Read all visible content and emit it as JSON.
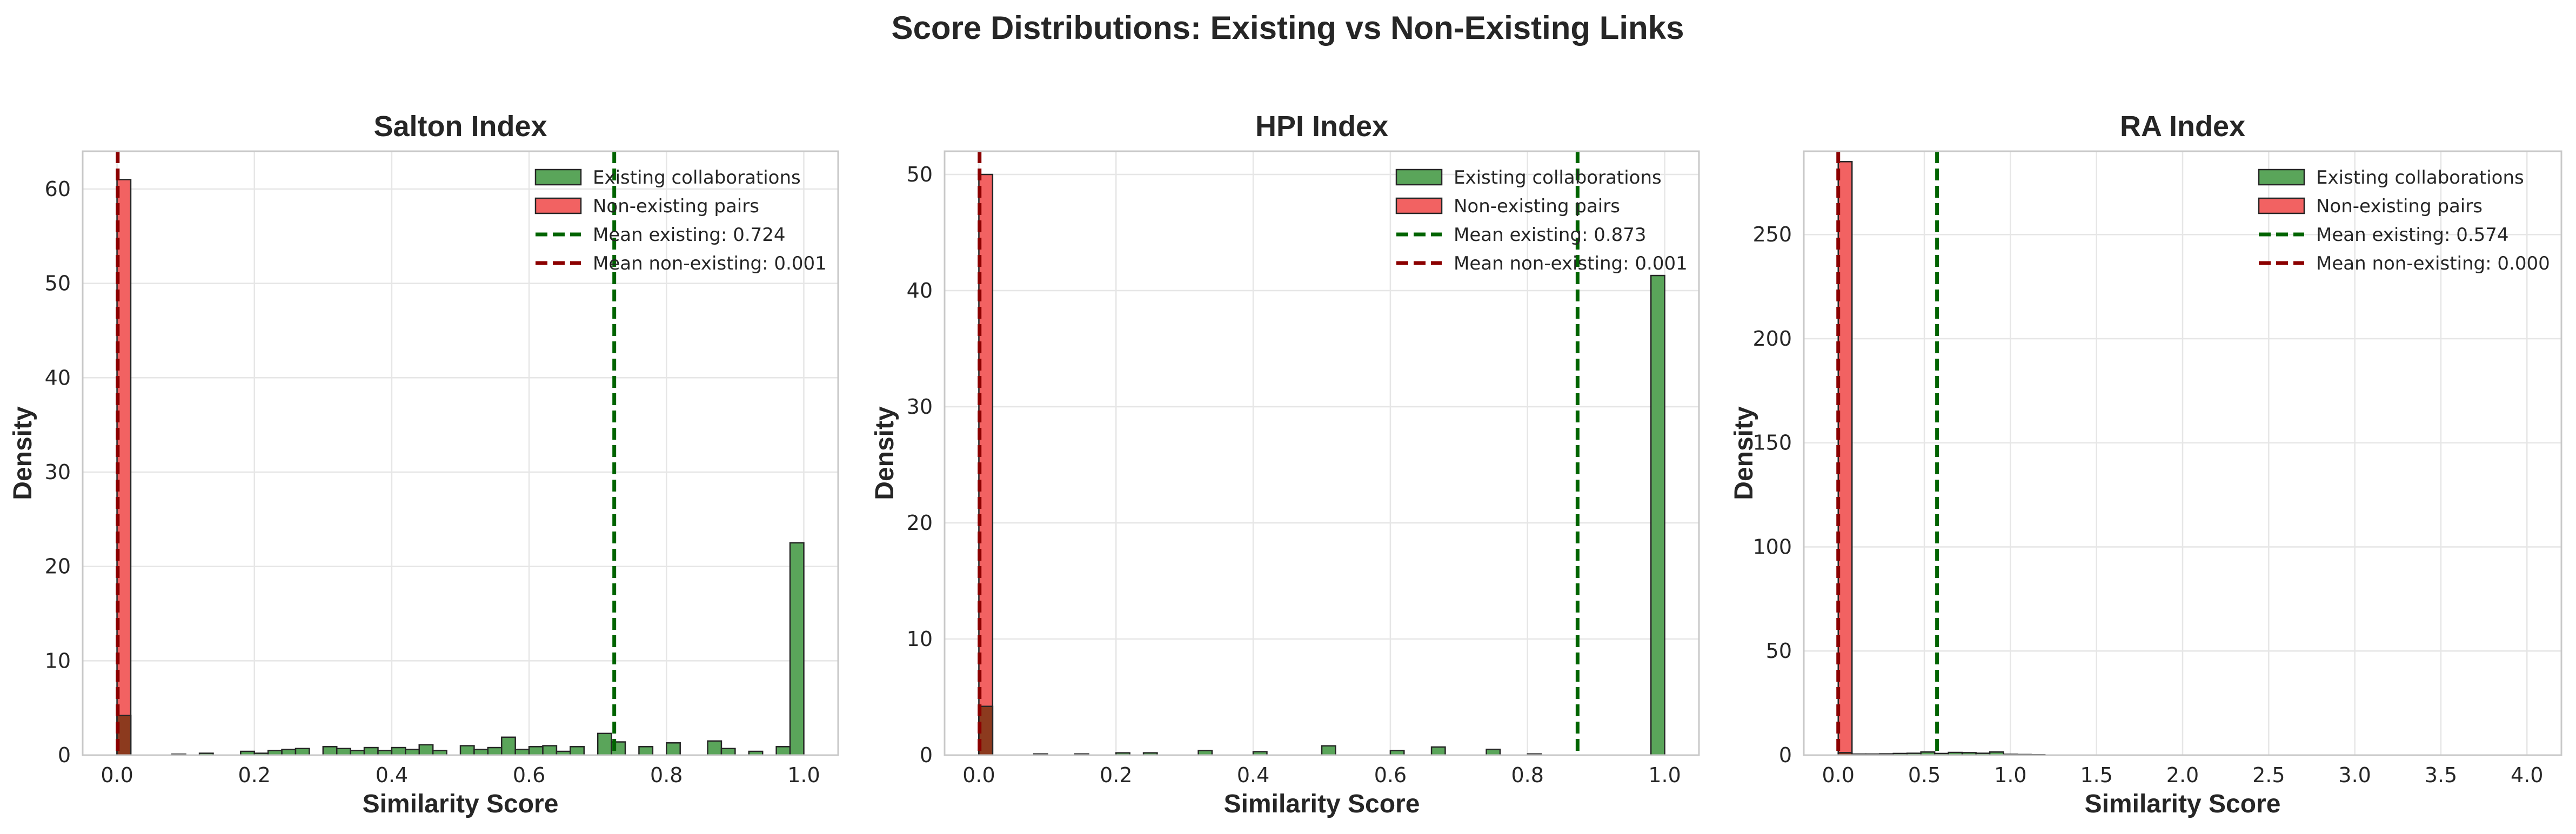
{
  "figure": {
    "title": "Score Distributions: Existing vs Non-Existing Links"
  },
  "colors": {
    "existing_fill": "#5aa55a",
    "non_existing_fill": "#f26262",
    "overlap_fill": "#8c3a1e",
    "mean_existing_line": "#006400",
    "mean_non_existing_line": "#8b0000",
    "bar_edge": "#262626"
  },
  "chart_data": [
    {
      "type": "bar",
      "title": "Salton Index",
      "xlabel": "Similarity Score",
      "ylabel": "Density",
      "xlim": [
        -0.05,
        1.05
      ],
      "ylim": [
        0,
        64
      ],
      "xticks": [
        0.0,
        0.2,
        0.4,
        0.6,
        0.8,
        1.0
      ],
      "xtick_labels": [
        "0.0",
        "0.2",
        "0.4",
        "0.6",
        "0.8",
        "1.0"
      ],
      "yticks": [
        0,
        10,
        20,
        30,
        40,
        50,
        60
      ],
      "ytick_labels": [
        "0",
        "10",
        "20",
        "30",
        "40",
        "50",
        "60"
      ],
      "grid": true,
      "legend_position": "top-right",
      "bin_width": 0.02,
      "series": [
        {
          "name": "Existing collaborations",
          "bin_starts": [
            0.0,
            0.08,
            0.12,
            0.18,
            0.2,
            0.22,
            0.24,
            0.26,
            0.3,
            0.32,
            0.34,
            0.36,
            0.38,
            0.4,
            0.42,
            0.44,
            0.46,
            0.5,
            0.52,
            0.54,
            0.56,
            0.58,
            0.6,
            0.62,
            0.64,
            0.66,
            0.7,
            0.72,
            0.76,
            0.8,
            0.86,
            0.88,
            0.92,
            0.96,
            0.98
          ],
          "values": [
            4.2,
            0.1,
            0.2,
            0.4,
            0.2,
            0.5,
            0.6,
            0.7,
            0.9,
            0.7,
            0.5,
            0.8,
            0.5,
            0.8,
            0.6,
            1.1,
            0.5,
            1.0,
            0.6,
            0.8,
            1.9,
            0.6,
            0.9,
            1.0,
            0.4,
            0.9,
            2.3,
            1.4,
            0.9,
            1.3,
            1.5,
            0.7,
            0.4,
            0.9,
            22.5
          ]
        },
        {
          "name": "Non-existing pairs",
          "bin_starts": [
            0.0
          ],
          "values": [
            61
          ]
        }
      ],
      "mean_lines": [
        {
          "name": "Mean existing: 0.724",
          "x": 0.724
        },
        {
          "name": "Mean non-existing: 0.001",
          "x": 0.001
        }
      ]
    },
    {
      "type": "bar",
      "title": "HPI Index",
      "xlabel": "Similarity Score",
      "ylabel": "Density",
      "xlim": [
        -0.05,
        1.05
      ],
      "ylim": [
        0,
        52
      ],
      "xticks": [
        0.0,
        0.2,
        0.4,
        0.6,
        0.8,
        1.0
      ],
      "xtick_labels": [
        "0.0",
        "0.2",
        "0.4",
        "0.6",
        "0.8",
        "1.0"
      ],
      "yticks": [
        0,
        10,
        20,
        30,
        40,
        50
      ],
      "ytick_labels": [
        "0",
        "10",
        "20",
        "30",
        "40",
        "50"
      ],
      "grid": true,
      "legend_position": "top-right",
      "bin_width": 0.02,
      "series": [
        {
          "name": "Existing collaborations",
          "bin_starts": [
            0.0,
            0.08,
            0.14,
            0.2,
            0.24,
            0.32,
            0.4,
            0.5,
            0.6,
            0.66,
            0.74,
            0.8,
            0.98
          ],
          "values": [
            4.2,
            0.1,
            0.1,
            0.2,
            0.2,
            0.4,
            0.3,
            0.8,
            0.4,
            0.7,
            0.5,
            0.1,
            41.3
          ]
        },
        {
          "name": "Non-existing pairs",
          "bin_starts": [
            0.0
          ],
          "values": [
            50
          ]
        }
      ],
      "mean_lines": [
        {
          "name": "Mean existing: 0.873",
          "x": 0.873
        },
        {
          "name": "Mean non-existing: 0.001",
          "x": 0.001
        }
      ]
    },
    {
      "type": "bar",
      "title": "RA Index",
      "xlabel": "Similarity Score",
      "ylabel": "Density",
      "xlim": [
        -0.2,
        4.2
      ],
      "ylim": [
        0,
        290
      ],
      "xticks": [
        0.0,
        0.5,
        1.0,
        1.5,
        2.0,
        2.5,
        3.0,
        3.5,
        4.0
      ],
      "xtick_labels": [
        "0.0",
        "0.5",
        "1.0",
        "1.5",
        "2.0",
        "2.5",
        "3.0",
        "3.5",
        "4.0"
      ],
      "yticks": [
        0,
        50,
        100,
        150,
        200,
        250
      ],
      "ytick_labels": [
        "0",
        "50",
        "100",
        "150",
        "200",
        "250"
      ],
      "grid": true,
      "legend_position": "top-right",
      "bin_width": 0.08,
      "series": [
        {
          "name": "Existing collaborations",
          "bin_starts": [
            0.0,
            0.08,
            0.16,
            0.24,
            0.32,
            0.4,
            0.48,
            0.56,
            0.64,
            0.72,
            0.8,
            0.88,
            0.96,
            1.04,
            1.12
          ],
          "values": [
            1.2,
            0.5,
            0.5,
            0.6,
            0.8,
            0.9,
            1.5,
            0.8,
            1.3,
            1.2,
            0.9,
            1.5,
            0.4,
            0.3,
            0.2
          ]
        },
        {
          "name": "Non-existing pairs",
          "bin_starts": [
            0.0
          ],
          "values": [
            285
          ]
        }
      ],
      "mean_lines": [
        {
          "name": "Mean existing: 0.574",
          "x": 0.574
        },
        {
          "name": "Mean non-existing: 0.000",
          "x": 0.0
        }
      ]
    }
  ]
}
